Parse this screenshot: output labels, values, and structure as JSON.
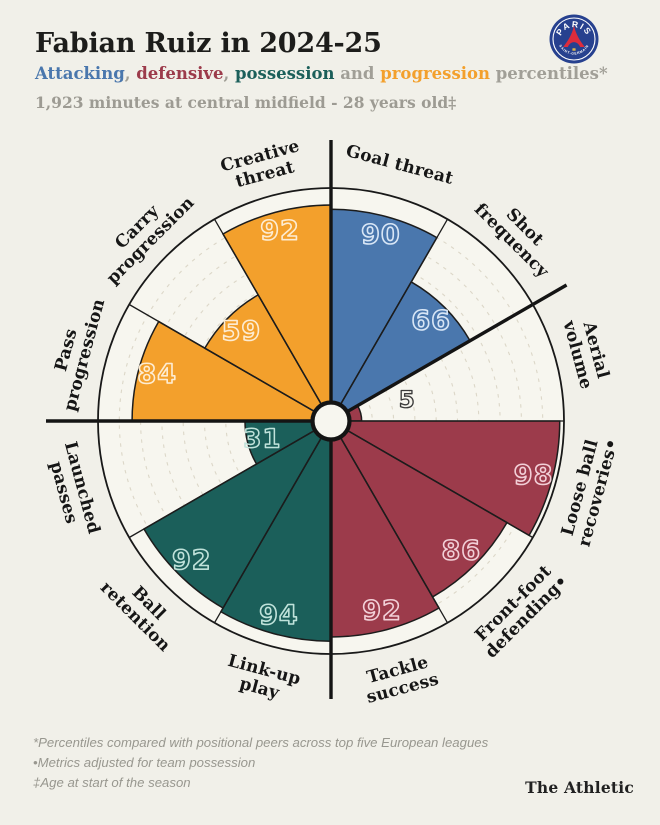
{
  "page": {
    "background": "#f1f0e9",
    "chart_area_fill": "#f7f6ef"
  },
  "header": {
    "title": "Fabian Ruiz in 2024-25",
    "subtitle_parts": [
      {
        "text": "Attacking",
        "group": "attacking"
      },
      {
        "text": ", ",
        "group": "muted"
      },
      {
        "text": "defensive",
        "group": "defensive"
      },
      {
        "text": ", ",
        "group": "muted"
      },
      {
        "text": "possession",
        "group": "possession"
      },
      {
        "text": " and ",
        "group": "muted"
      },
      {
        "text": "progression",
        "group": "progression"
      },
      {
        "text": " percentiles*",
        "group": "muted"
      }
    ],
    "muted_color": "#a19f97",
    "context_line": "1,923 minutes at central midfield - 28 years old‡"
  },
  "club_badge": {
    "club": "Paris Saint-Germain",
    "top_text": "PARIS",
    "bottom_text": "SAINT-GERMAIN",
    "navy": "#27418f",
    "red": "#dd2c3c",
    "gold": "#d9b64a",
    "white": "#ffffff"
  },
  "chart_data": {
    "type": "pizza",
    "title": "Fabian Ruiz percentile pizza 2024-25",
    "max": 100,
    "gridline_step": 10,
    "gridlines": [
      10,
      20,
      30,
      40,
      50,
      60,
      70,
      80,
      90
    ],
    "slices": [
      {
        "label": "Goal threat",
        "label_lines": [
          "Goal threat"
        ],
        "value": 90,
        "group": "attacking"
      },
      {
        "label": "Shot frequency",
        "label_lines": [
          "Shot",
          "frequency"
        ],
        "value": 66,
        "group": "attacking"
      },
      {
        "label": "Aerial volume",
        "label_lines": [
          "Aerial",
          "volume"
        ],
        "value": 5,
        "group": "defensive"
      },
      {
        "label": "Loose ball recoveries•",
        "label_lines": [
          "Loose ball",
          "recoveries•"
        ],
        "value": 98,
        "group": "defensive"
      },
      {
        "label": "Front-foot defending•",
        "label_lines": [
          "Front-foot",
          "defending•"
        ],
        "value": 86,
        "group": "defensive"
      },
      {
        "label": "Tackle success",
        "label_lines": [
          "Tackle",
          "success"
        ],
        "value": 92,
        "group": "defensive"
      },
      {
        "label": "Link-up play",
        "label_lines": [
          "Link-up",
          "play"
        ],
        "value": 94,
        "group": "possession"
      },
      {
        "label": "Ball retention",
        "label_lines": [
          "Ball",
          "retention"
        ],
        "value": 92,
        "group": "possession"
      },
      {
        "label": "Launched passes",
        "label_lines": [
          "Launched",
          "passes"
        ],
        "value": 31,
        "group": "possession"
      },
      {
        "label": "Pass progression",
        "label_lines": [
          "Pass",
          "progression"
        ],
        "value": 84,
        "group": "progression"
      },
      {
        "label": "Carry progression",
        "label_lines": [
          "Carry",
          "progression"
        ],
        "value": 59,
        "group": "progression"
      },
      {
        "label": "Creative threat",
        "label_lines": [
          "Creative",
          "threat"
        ],
        "value": 92,
        "group": "progression"
      }
    ],
    "group_colors": {
      "attacking": "#4a77ad",
      "defensive": "#9c3b4b",
      "possession": "#1b5f5a",
      "progression": "#f3a02c"
    },
    "number_colors": {
      "attacking": "#d8e6f6",
      "defensive": "#f2cfd7",
      "possession": "#bfe2da",
      "progression": "#fdecd2"
    },
    "low_value_number_color": "#3a3a3a",
    "group_boundaries_deg": [
      0,
      60,
      180,
      270
    ],
    "line_color": "#1c1c1c",
    "gridline_color": "#dcd7c8",
    "label_color": "#161616"
  },
  "footnotes": [
    "*Percentiles compared with positional peers across top five European leagues",
    "•Metrics adjusted for team possession",
    "‡Age at start of the season"
  ],
  "brand": "The Athletic"
}
